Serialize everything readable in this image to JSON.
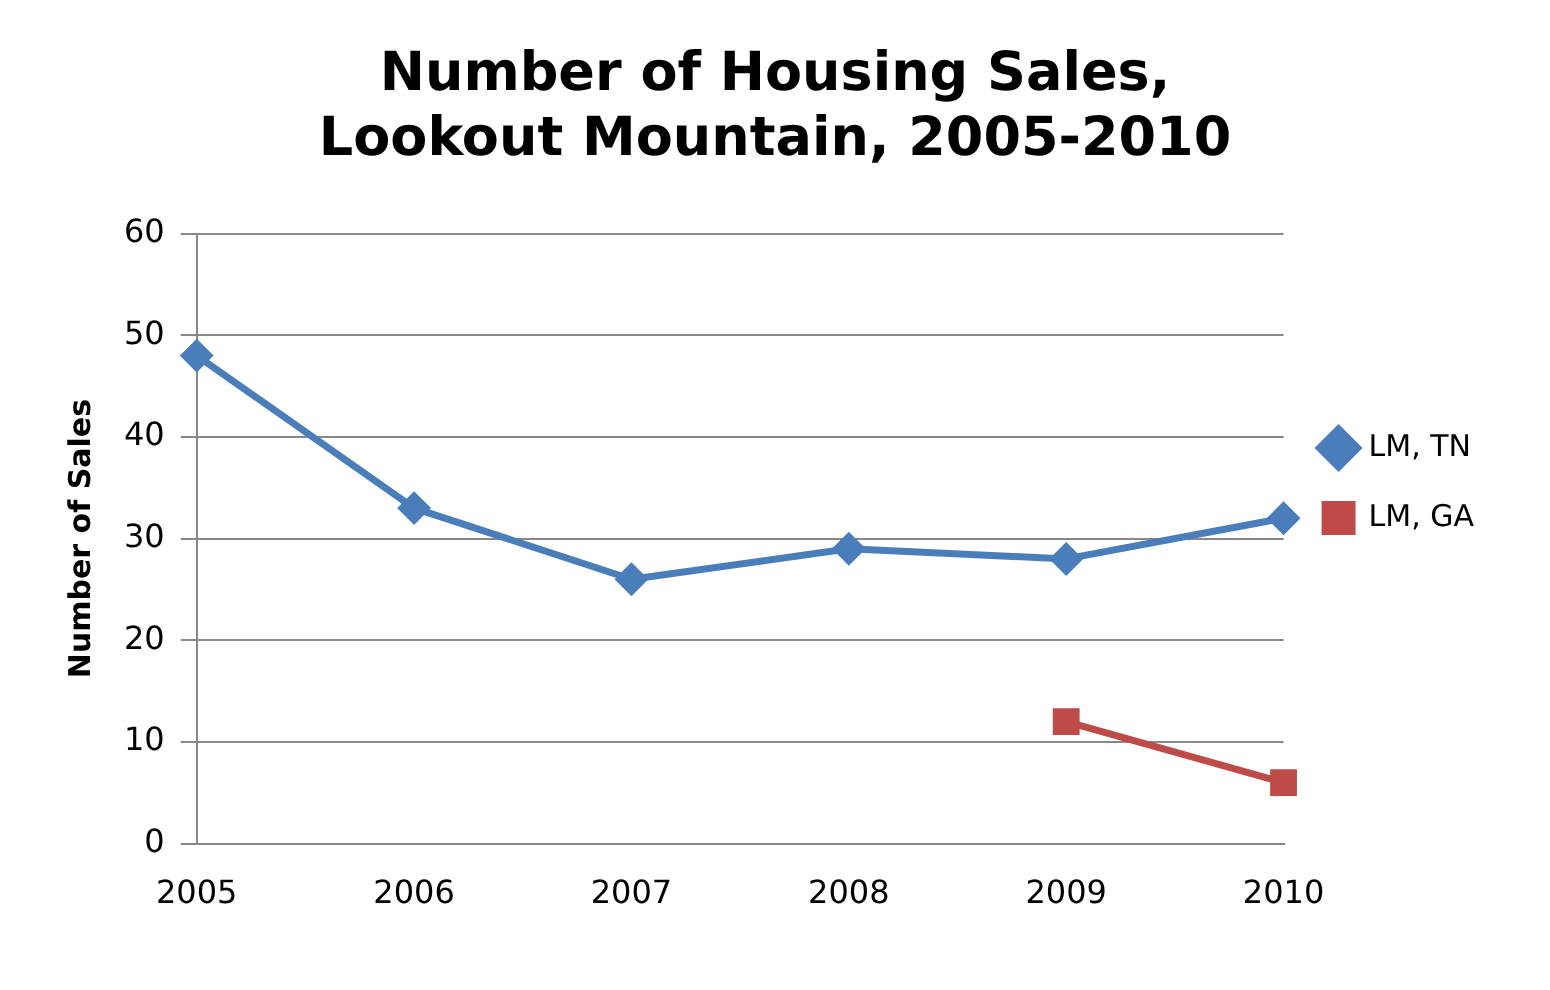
{
  "chart_data": {
    "type": "line",
    "title": [
      "Number of Housing Sales,",
      "Lookout Mountain, 2005-2010"
    ],
    "ylabel": "Number of Sales",
    "categories": [
      "2005",
      "2006",
      "2007",
      "2008",
      "2009",
      "2010"
    ],
    "series": [
      {
        "name": "LM, TN",
        "color": "#4a7ebb",
        "marker": "diamond",
        "values": [
          48,
          33,
          26,
          29,
          28,
          32
        ]
      },
      {
        "name": "LM, GA",
        "color": "#be4b48",
        "marker": "square",
        "values": [
          null,
          null,
          null,
          null,
          12,
          6
        ]
      }
    ],
    "ylim": [
      0,
      60
    ],
    "yticks": [
      0,
      10,
      20,
      30,
      40,
      50,
      60
    ],
    "grid": "y",
    "legend": "right",
    "line_style": "solid"
  }
}
